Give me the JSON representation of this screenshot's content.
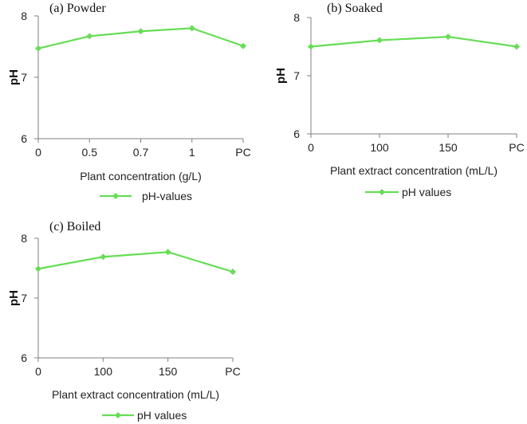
{
  "chart_data": [
    {
      "type": "line",
      "title": "(a) Powder",
      "xlabel": "Plant concentration (g/L)",
      "ylabel": "pH",
      "categories": [
        "0",
        "0.5",
        "0.7",
        "1",
        "PC"
      ],
      "ylim": [
        6,
        8
      ],
      "yticks": [
        "6",
        "7",
        "8"
      ],
      "series": [
        {
          "name": "pH-values",
          "values": [
            7.47,
            7.67,
            7.75,
            7.8,
            7.51
          ],
          "color": "#66dd55"
        }
      ],
      "legend": "bottom",
      "grid": false
    },
    {
      "type": "line",
      "title": "(b) Soaked",
      "xlabel": "Plant extract concentration (mL/L)",
      "ylabel": "pH",
      "categories": [
        "0",
        "100",
        "150",
        "PC"
      ],
      "ylim": [
        6,
        8
      ],
      "yticks": [
        "6",
        "7",
        "8"
      ],
      "series": [
        {
          "name": "pH values",
          "values": [
            7.5,
            7.61,
            7.67,
            7.5
          ],
          "color": "#66dd55"
        }
      ],
      "legend": "bottom",
      "grid": false
    },
    {
      "type": "line",
      "title": "(c) Boiled",
      "xlabel": "Plant extract concentration (mL/L)",
      "ylabel": "pH",
      "categories": [
        "0",
        "100",
        "150",
        "PC"
      ],
      "ylim": [
        6,
        8
      ],
      "yticks": [
        "6",
        "7",
        "8"
      ],
      "series": [
        {
          "name": "pH values",
          "values": [
            7.49,
            7.69,
            7.77,
            7.44
          ],
          "color": "#66dd55"
        }
      ],
      "legend": "bottom",
      "grid": false
    }
  ]
}
